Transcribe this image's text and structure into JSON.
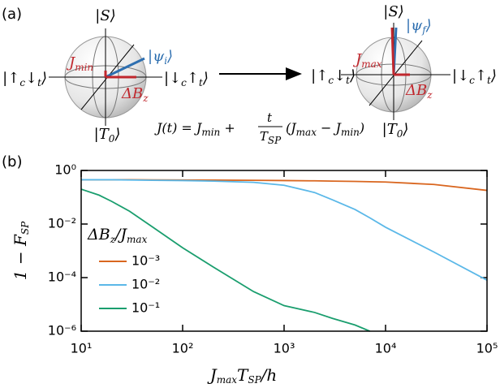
{
  "diagram": {
    "panel_label": "(a)",
    "state_top": "|S⟩",
    "state_bottom": [
      "|T",
      "0",
      "⟩"
    ],
    "state_left": [
      "|↑",
      "c",
      "↓",
      "t",
      "⟩"
    ],
    "state_right": [
      "|↓",
      "c",
      "↑",
      "t",
      "⟩"
    ],
    "j_min": [
      "J",
      "min"
    ],
    "j_max": [
      "J",
      "max"
    ],
    "psi_i": [
      "|ψ",
      "i",
      "⟩"
    ],
    "psi_f": [
      "|ψ",
      "f",
      "⟩"
    ],
    "delta_bz": [
      "ΔB",
      "z"
    ],
    "equation": {
      "left": [
        "J(t) = J",
        "min",
        " + "
      ],
      "numerator": "t",
      "denominator": [
        "T",
        "SP"
      ],
      "right": [
        "(J",
        "max",
        " − J",
        "min",
        ")"
      ]
    }
  },
  "chart_data": {
    "type": "line",
    "panel_label": "(b)",
    "x_label": [
      "J",
      "max",
      "T",
      "SP",
      "/h"
    ],
    "y_label": [
      "1 − F",
      "SP"
    ],
    "legend_title": [
      "ΔB",
      "z",
      "/J",
      "max"
    ],
    "log_x": true,
    "log_y": true,
    "xlim": [
      10,
      100000
    ],
    "ylim": [
      1e-06,
      1
    ],
    "xticks": [
      {
        "value": 10,
        "label": "10¹"
      },
      {
        "value": 100,
        "label": "10²"
      },
      {
        "value": 1000,
        "label": "10³"
      },
      {
        "value": 10000,
        "label": "10⁴"
      },
      {
        "value": 100000,
        "label": "10⁵"
      }
    ],
    "yticks": [
      {
        "value": 1,
        "label": "10⁰"
      },
      {
        "value": 0.01,
        "label": "10⁻²"
      },
      {
        "value": 0.0001,
        "label": "10⁻⁴"
      },
      {
        "value": 1e-06,
        "label": "10⁻⁶"
      }
    ],
    "x": [
      10,
      15,
      20,
      30,
      50,
      100,
      200,
      500,
      1000,
      2000,
      3000,
      5000,
      7000,
      10000,
      30000,
      100000
    ],
    "series": [
      {
        "name": "10⁻³",
        "color": "#d9661f",
        "values": [
          0.45,
          0.45,
          0.45,
          0.45,
          0.445,
          0.44,
          0.435,
          0.43,
          0.42,
          0.41,
          0.4,
          0.39,
          0.38,
          0.37,
          0.3,
          0.18
        ]
      },
      {
        "name": "10⁻²",
        "color": "#5bb8e8",
        "values": [
          0.45,
          0.45,
          0.45,
          0.44,
          0.43,
          0.42,
          0.4,
          0.36,
          0.28,
          0.15,
          0.08,
          0.035,
          0.017,
          0.0076,
          0.0009,
          8e-05
        ]
      },
      {
        "name": "10⁻¹",
        "color": "#1a9e6e",
        "values": [
          0.2,
          0.12,
          0.07,
          0.03,
          0.008,
          0.0013,
          0.00025,
          3e-05,
          9e-06,
          5e-06,
          3e-06,
          1.7e-06,
          1e-06,
          null,
          null,
          null
        ]
      }
    ]
  }
}
